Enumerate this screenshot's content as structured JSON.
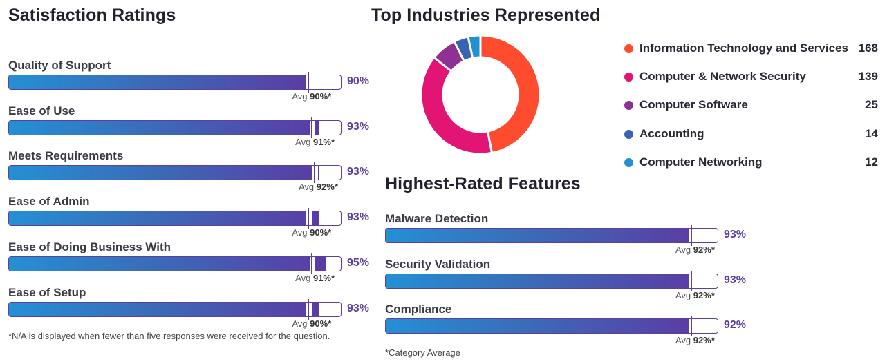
{
  "satisfaction": {
    "title": "Satisfaction Ratings",
    "avg_prefix": "Avg",
    "items": [
      {
        "label": "Quality of Support",
        "value": 90,
        "value_text": "90%",
        "avg": 90,
        "avg_text": "90%*"
      },
      {
        "label": "Ease of Use",
        "value": 93,
        "value_text": "93%",
        "avg": 91,
        "avg_text": "91%*"
      },
      {
        "label": "Meets Requirements",
        "value": 93,
        "value_text": "93%",
        "avg": 92,
        "avg_text": "92%*"
      },
      {
        "label": "Ease of Admin",
        "value": 93,
        "value_text": "93%",
        "avg": 90,
        "avg_text": "90%*"
      },
      {
        "label": "Ease of Doing Business With",
        "value": 95,
        "value_text": "95%",
        "avg": 91,
        "avg_text": "91%*"
      },
      {
        "label": "Ease of Setup",
        "value": 93,
        "value_text": "93%",
        "avg": 90,
        "avg_text": "90%*"
      }
    ],
    "footnote": "*N/A is displayed when fewer than five responses were received for the question."
  },
  "industries": {
    "title": "Top Industries Represented",
    "items": [
      {
        "label": "Information Technology and Services",
        "count": "168",
        "color": "#ff4b2e"
      },
      {
        "label": "Computer & Network Security",
        "count": "139",
        "color": "#e21474"
      },
      {
        "label": "Computer Software",
        "count": "25",
        "color": "#8e3192"
      },
      {
        "label": "Accounting",
        "count": "14",
        "color": "#3963b4"
      },
      {
        "label": "Computer Networking",
        "count": "12",
        "color": "#2390d4"
      }
    ]
  },
  "features": {
    "title": "Highest-Rated Features",
    "avg_prefix": "Avg",
    "items": [
      {
        "label": "Malware Detection",
        "value": 93,
        "value_text": "93%",
        "avg": 92,
        "avg_text": "92%*"
      },
      {
        "label": "Security Validation",
        "value": 93,
        "value_text": "93%",
        "avg": 92,
        "avg_text": "92%*"
      },
      {
        "label": "Compliance",
        "value": 92,
        "value_text": "92%",
        "avg": 92,
        "avg_text": "92%*"
      }
    ],
    "footnote": "*Category Average"
  },
  "chart_data": [
    {
      "type": "bar",
      "title": "Satisfaction Ratings",
      "categories": [
        "Quality of Support",
        "Ease of Use",
        "Meets Requirements",
        "Ease of Admin",
        "Ease of Doing Business With",
        "Ease of Setup"
      ],
      "series": [
        {
          "name": "Rating",
          "values": [
            90,
            93,
            93,
            93,
            95,
            93
          ]
        },
        {
          "name": "Category Average",
          "values": [
            90,
            91,
            92,
            90,
            91,
            90
          ]
        }
      ],
      "xlim": [
        0,
        100
      ],
      "unit": "%"
    },
    {
      "type": "pie",
      "title": "Top Industries Represented",
      "categories": [
        "Information Technology and Services",
        "Computer & Network Security",
        "Computer Software",
        "Accounting",
        "Computer Networking"
      ],
      "values": [
        168,
        139,
        25,
        14,
        12
      ],
      "donut": true,
      "legend": "right"
    },
    {
      "type": "bar",
      "title": "Highest-Rated Features",
      "categories": [
        "Malware Detection",
        "Security Validation",
        "Compliance"
      ],
      "series": [
        {
          "name": "Rating",
          "values": [
            93,
            93,
            92
          ]
        },
        {
          "name": "Category Average",
          "values": [
            92,
            92,
            92
          ]
        }
      ],
      "xlim": [
        0,
        100
      ],
      "unit": "%"
    }
  ]
}
